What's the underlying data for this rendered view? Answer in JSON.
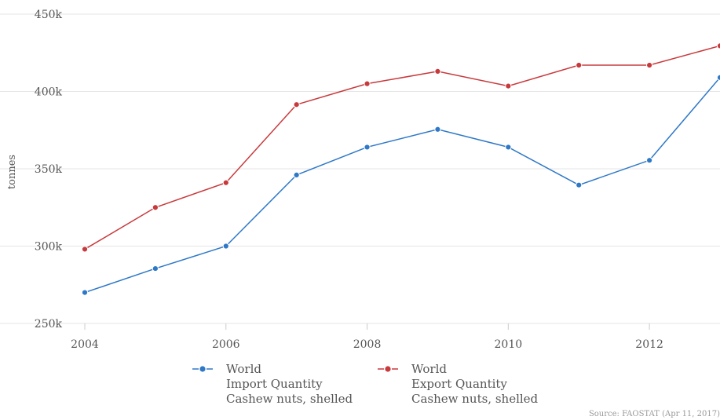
{
  "chart_data": {
    "type": "line",
    "title": "",
    "xlabel": "",
    "ylabel": "tonnes",
    "x": [
      2004,
      2005,
      2006,
      2007,
      2008,
      2009,
      2010,
      2011,
      2012,
      2013
    ],
    "xticks": [
      2004,
      2006,
      2008,
      2010,
      2012
    ],
    "xtick_labels": [
      "2004",
      "2006",
      "2008",
      "2010",
      "2012"
    ],
    "xlim": [
      2004,
      2013
    ],
    "ylim": [
      250000,
      450000
    ],
    "yticks": [
      250000,
      300000,
      350000,
      400000,
      450000
    ],
    "ytick_labels": [
      "250k",
      "300k",
      "350k",
      "400k",
      "450k"
    ],
    "grid": true,
    "legend_position": "bottom",
    "series": [
      {
        "name": "World Import Quantity Cashew nuts, shelled",
        "legend_lines": [
          "World",
          "Import Quantity",
          "Cashew nuts, shelled"
        ],
        "color": "#2e78c7",
        "values": [
          270000,
          285500,
          300000,
          346000,
          364000,
          375500,
          364000,
          339500,
          355500,
          409000
        ]
      },
      {
        "name": "World Export Quantity Cashew nuts, shelled",
        "legend_lines": [
          "World",
          "Export Quantity",
          "Cashew nuts, shelled"
        ],
        "color": "#c8393c",
        "values": [
          298000,
          325000,
          341000,
          391500,
          405000,
          413000,
          403500,
          417000,
          417000,
          429500
        ]
      }
    ],
    "source": "Source: FAOSTAT (Apr 11, 2017)"
  }
}
